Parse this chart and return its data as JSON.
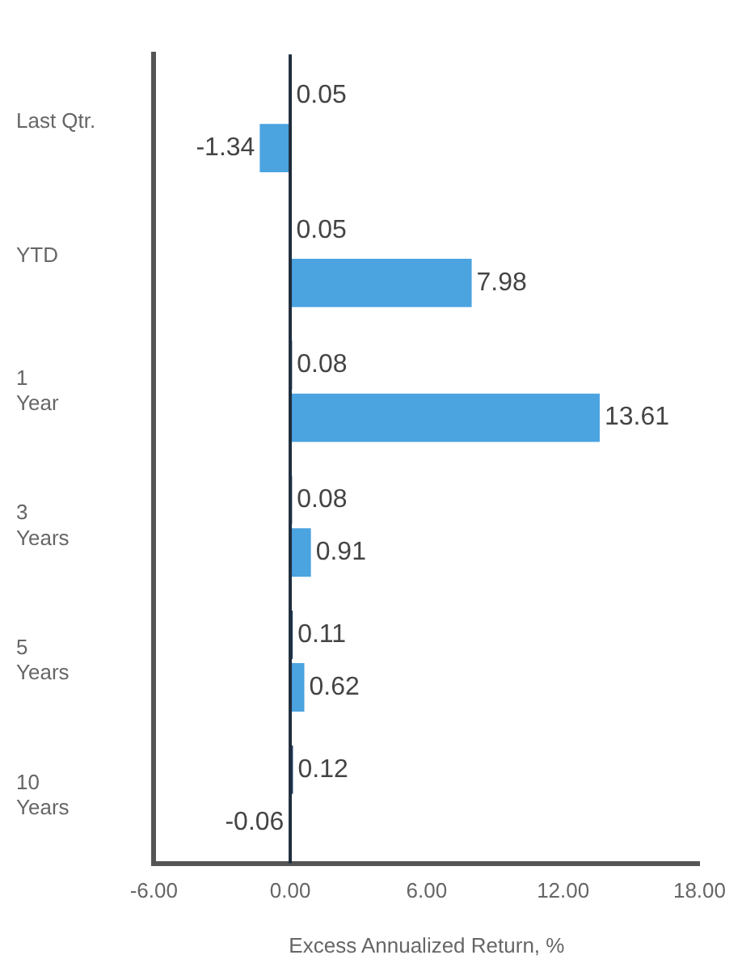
{
  "chart_data": {
    "type": "bar",
    "orientation": "horizontal",
    "xlabel": "Excess Annualized Return, %",
    "categories": [
      "Last Qtr.",
      "YTD",
      "1\nYear",
      "3\nYears",
      "5\nYears",
      "10\nYears"
    ],
    "series": [
      {
        "color": "#1f3b63",
        "values": [
          0.05,
          0.05,
          0.08,
          0.08,
          0.11,
          0.12
        ],
        "value_labels": [
          "0.05",
          "0.05",
          "0.08",
          "0.08",
          "0.11",
          "0.12"
        ]
      },
      {
        "color": "#4ba3e0",
        "values": [
          -1.34,
          7.98,
          13.61,
          0.91,
          0.62,
          -0.06
        ],
        "value_labels": [
          "-1.34",
          "7.98",
          "13.61",
          "0.91",
          "0.62",
          "-0.06"
        ]
      }
    ],
    "xlim": [
      -6,
      18
    ],
    "xticks": [
      {
        "value": -6,
        "label": "-6.00"
      },
      {
        "value": 0,
        "label": "0.00"
      },
      {
        "value": 6,
        "label": "6.00"
      },
      {
        "value": 12,
        "label": "12.00"
      },
      {
        "value": 18,
        "label": "18.00"
      }
    ],
    "ref_lines": [
      {
        "axis": "x",
        "value": 0,
        "color": "#1f2d3d"
      }
    ],
    "grid": false,
    "legend": false
  }
}
